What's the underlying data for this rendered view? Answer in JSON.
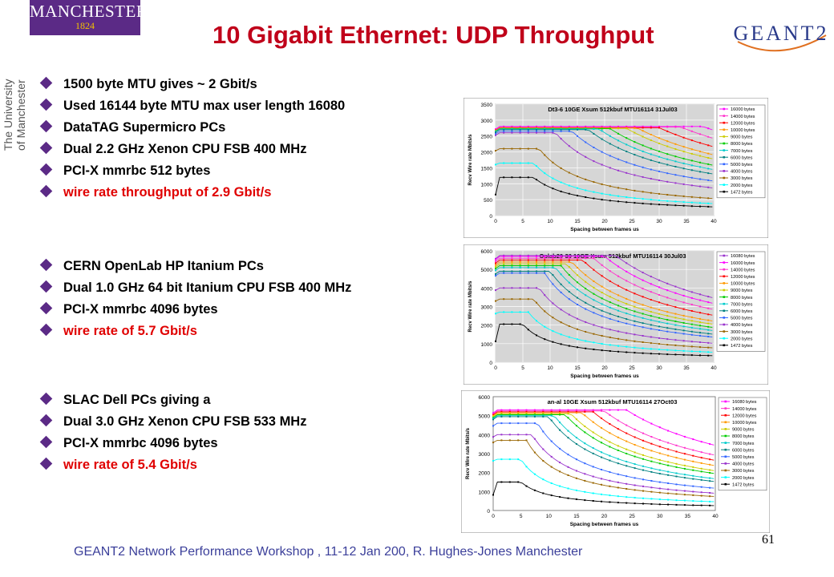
{
  "branding": {
    "left_logo_name": "MANCHESTER",
    "left_logo_year": "1824",
    "vertical_text_1": "The University",
    "vertical_text_2": "of Manchester",
    "right_logo": "GEANT2"
  },
  "title": "10 Gigabit Ethernet: UDP Throughput",
  "groups": [
    {
      "bullets": [
        {
          "text": "1500 byte MTU gives ~ 2 Gbit/s",
          "color": "#000000"
        },
        {
          "text": "Used 16144 byte MTU max user length 16080",
          "color": "#000000"
        },
        {
          "text": "DataTAG Supermicro PCs",
          "color": "#000000"
        },
        {
          "text": "Dual 2.2 GHz Xenon CPU FSB 400 MHz",
          "color": "#000000"
        },
        {
          "text": "PCI-X mmrbc 512 bytes",
          "color": "#000000"
        },
        {
          "text": "wire rate throughput of 2.9 Gbit/s",
          "color": "#e00000"
        }
      ]
    },
    {
      "bullets": [
        {
          "text": "CERN OpenLab HP Itanium PCs",
          "color": "#000000"
        },
        {
          "text": "Dual 1.0 GHz 64 bit Itanium CPU FSB 400 MHz",
          "color": "#000000"
        },
        {
          "text": "PCI-X mmrbc 4096 bytes",
          "color": "#000000"
        },
        {
          "text": "wire rate of 5.7 Gbit/s",
          "color": "#e00000"
        }
      ]
    },
    {
      "bullets": [
        {
          "text": "SLAC Dell PCs giving a",
          "color": "#000000"
        },
        {
          "text": "Dual 3.0 GHz Xenon CPU FSB 533 MHz",
          "color": "#000000"
        },
        {
          "text": "PCI-X mmrbc 4096 bytes",
          "color": "#000000"
        },
        {
          "text": "wire rate of 5.4 Gbit/s",
          "color": "#e00000"
        }
      ]
    }
  ],
  "footer": "GEANT2 Network Performance Workshop , 11-12 Jan 200,  R. Hughes-Jones  Manchester",
  "page_number": "61",
  "chart_data": [
    {
      "type": "line",
      "title": "Dt3-6 10GE Xsum 512kbuf MTU16114 31Jul03",
      "xlabel": "Spacing between frames us",
      "ylabel": "Recv Wire rate Mbits/s",
      "xlim": [
        0,
        40
      ],
      "ylim": [
        0,
        3500
      ],
      "xticks": [
        0,
        5,
        10,
        15,
        20,
        25,
        30,
        35,
        40
      ],
      "yticks": [
        0,
        500,
        1000,
        1500,
        2000,
        2500,
        3000,
        3500
      ],
      "grid": true,
      "legend": "right",
      "plot_bg": "#d6d6d6",
      "series": [
        {
          "name": "16000 bytes",
          "color": "#ff00ff",
          "plateau": 2800,
          "knee": 38
        },
        {
          "name": "14000 bytes",
          "color": "#ff33cc",
          "plateau": 2780,
          "knee": 34
        },
        {
          "name": "12000 bytes",
          "color": "#ff0000",
          "plateau": 2760,
          "knee": 30
        },
        {
          "name": "10000 bytes",
          "color": "#ff9900",
          "plateau": 2750,
          "knee": 26
        },
        {
          "name": "9000 bytes",
          "color": "#cccc00",
          "plateau": 2740,
          "knee": 24
        },
        {
          "name": "8000 bytes",
          "color": "#00cc00",
          "plateau": 2730,
          "knee": 21
        },
        {
          "name": "7000 bytes",
          "color": "#00cccc",
          "plateau": 2720,
          "knee": 19
        },
        {
          "name": "6000 bytes",
          "color": "#008080",
          "plateau": 2700,
          "knee": 17
        },
        {
          "name": "5000 bytes",
          "color": "#3366ff",
          "plateau": 2650,
          "knee": 14
        },
        {
          "name": "4000 bytes",
          "color": "#9933cc",
          "plateau": 2600,
          "knee": 11
        },
        {
          "name": "3000 bytes",
          "color": "#996600",
          "plateau": 2100,
          "knee": 8
        },
        {
          "name": "2000 bytes",
          "color": "#00ffff",
          "plateau": 1650,
          "knee": 7
        },
        {
          "name": "1472 bytes",
          "color": "#000000",
          "plateau": 1200,
          "knee": 7
        }
      ]
    },
    {
      "type": "line",
      "title": "Oplab29-30 10GE Xsum 512kbuf MTU16114 30Jul03",
      "xlabel": "Spacing between frames us",
      "ylabel": "Recv Wire rate Mbits/s",
      "xlim": [
        0,
        40
      ],
      "ylim": [
        0,
        6000
      ],
      "xticks": [
        0,
        5,
        10,
        15,
        20,
        25,
        30,
        35,
        40
      ],
      "yticks": [
        0,
        1000,
        2000,
        3000,
        4000,
        5000,
        6000
      ],
      "grid": true,
      "legend": "right",
      "plot_bg": "#d6d6d6",
      "series": [
        {
          "name": "16080 bytes",
          "color": "#9933cc",
          "plateau": 5750,
          "knee": 22
        },
        {
          "name": "16000 bytes",
          "color": "#ff00ff",
          "plateau": 5700,
          "knee": 20
        },
        {
          "name": "14000 bytes",
          "color": "#ff33cc",
          "plateau": 5600,
          "knee": 18
        },
        {
          "name": "12000 bytes",
          "color": "#ff0000",
          "plateau": 5500,
          "knee": 16
        },
        {
          "name": "10000 bytes",
          "color": "#ff9900",
          "plateau": 5400,
          "knee": 14
        },
        {
          "name": "9000 bytes",
          "color": "#cccc00",
          "plateau": 5300,
          "knee": 13
        },
        {
          "name": "8000 bytes",
          "color": "#00cc00",
          "plateau": 5200,
          "knee": 12
        },
        {
          "name": "7000 bytes",
          "color": "#00cccc",
          "plateau": 5100,
          "knee": 11
        },
        {
          "name": "6000 bytes",
          "color": "#008080",
          "plateau": 4900,
          "knee": 10
        },
        {
          "name": "5000 bytes",
          "color": "#3366ff",
          "plateau": 4800,
          "knee": 9
        },
        {
          "name": "4000 bytes",
          "color": "#9933cc",
          "plateau": 4000,
          "knee": 8
        },
        {
          "name": "3000 bytes",
          "color": "#996600",
          "plateau": 3400,
          "knee": 7
        },
        {
          "name": "2000 bytes",
          "color": "#00ffff",
          "plateau": 2700,
          "knee": 6
        },
        {
          "name": "1472 bytes",
          "color": "#000000",
          "plateau": 2050,
          "knee": 5
        }
      ]
    },
    {
      "type": "line",
      "title": "an-al 10GE Xsum 512kbuf MTU16114 27Oct03",
      "xlabel": "Spacing between frames us",
      "ylabel": "Recv Wire rate Mbits/s",
      "xlim": [
        0,
        40
      ],
      "ylim": [
        0,
        6000
      ],
      "xticks": [
        0,
        5,
        10,
        15,
        20,
        25,
        30,
        35,
        40
      ],
      "yticks": [
        0,
        1000,
        2000,
        3000,
        4000,
        5000,
        6000
      ],
      "grid": false,
      "legend": "right",
      "plot_bg": "#ffffff",
      "series": [
        {
          "name": "16080 bytes",
          "color": "#ff00ff",
          "plateau": 5300,
          "knee": 24
        },
        {
          "name": "14000 bytes",
          "color": "#ff33cc",
          "plateau": 5250,
          "knee": 20
        },
        {
          "name": "12000 bytes",
          "color": "#ff0000",
          "plateau": 5200,
          "knee": 18
        },
        {
          "name": "10000 bytes",
          "color": "#ff9900",
          "plateau": 5150,
          "knee": 16
        },
        {
          "name": "9000 bytes",
          "color": "#cccc00",
          "plateau": 5100,
          "knee": 14
        },
        {
          "name": "8000 bytes",
          "color": "#00cc00",
          "plateau": 5050,
          "knee": 13
        },
        {
          "name": "7000 bytes",
          "color": "#00cccc",
          "plateau": 5000,
          "knee": 11
        },
        {
          "name": "6000 bytes",
          "color": "#008080",
          "plateau": 4950,
          "knee": 10
        },
        {
          "name": "5000 bytes",
          "color": "#3366ff",
          "plateau": 4600,
          "knee": 8
        },
        {
          "name": "4000 bytes",
          "color": "#9933cc",
          "plateau": 4000,
          "knee": 7
        },
        {
          "name": "3000 bytes",
          "color": "#996600",
          "plateau": 3700,
          "knee": 6
        },
        {
          "name": "2000 bytes",
          "color": "#00ffff",
          "plateau": 2700,
          "knee": 5
        },
        {
          "name": "1472 bytes",
          "color": "#000000",
          "plateau": 1500,
          "knee": 5
        }
      ]
    }
  ]
}
